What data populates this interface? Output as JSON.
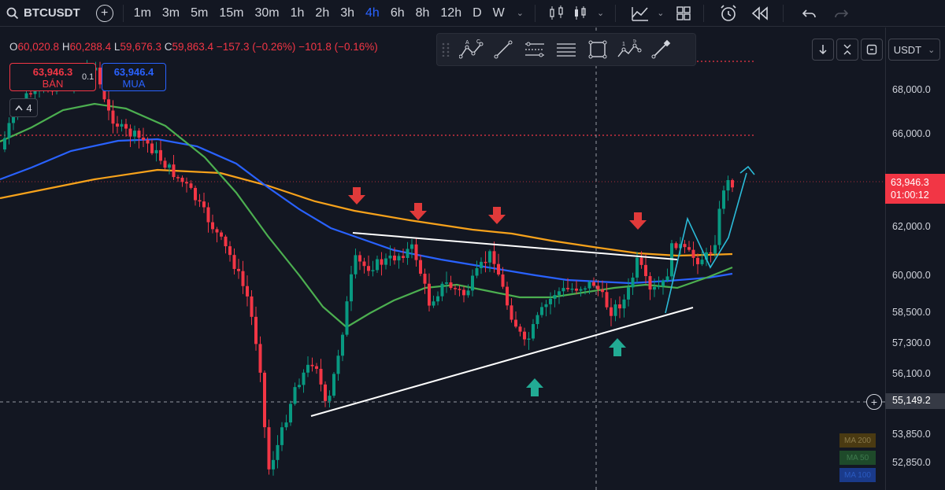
{
  "toolbar": {
    "symbol": "BTCUSDT",
    "timeframes": [
      "1m",
      "3m",
      "5m",
      "15m",
      "30m",
      "1h",
      "2h",
      "3h",
      "4h",
      "6h",
      "8h",
      "12h",
      "D",
      "W"
    ],
    "active_timeframe": "4h"
  },
  "legend": {
    "open_label": "O",
    "open": "60,020.8",
    "high_label": "H",
    "high": "60,288.4",
    "low_label": "L",
    "low": "59,676.3",
    "close_label": "C",
    "close": "59,863.4",
    "change": "−157.3 (−0.26%)",
    "change2": "−101.8 (−0.16%)"
  },
  "trade": {
    "sell_price": "63,946.3",
    "sell_label": "BÁN",
    "buy_price": "63,946.4",
    "buy_label": "MUA",
    "spread": "0.1",
    "collapsed_count": "4"
  },
  "price_scale": {
    "currency": "USDT",
    "ticks": [
      "68,000.0",
      "66,000.0",
      "62,000.0",
      "60,000.0",
      "58,500.0",
      "57,300.0",
      "56,100.0",
      "53,850.0",
      "52,850.0"
    ],
    "current_price": "63,946.3",
    "countdown": "01:00:12",
    "crosshair_price": "55,149.2"
  },
  "ma_legend": {
    "ma200": "MA 200",
    "ma_green": "MA 50",
    "ma_blue": "MA 100"
  },
  "colors": {
    "background": "#131722",
    "up": "#089981",
    "down": "#f23645",
    "accent": "#2962ff",
    "ma_orange": "#f7a21b",
    "ma_green": "#4caf50",
    "ma_blue": "#2962ff"
  },
  "icons": {
    "search": "search-icon",
    "add_symbol": "plus-circle-icon",
    "bar_style": "candles-icon",
    "indicators": "indicators-icon",
    "layouts": "grid-icon",
    "alert": "alarm-clock-icon",
    "replay": "rewind-icon",
    "undo": "undo-icon",
    "redo": "redo-icon"
  }
}
